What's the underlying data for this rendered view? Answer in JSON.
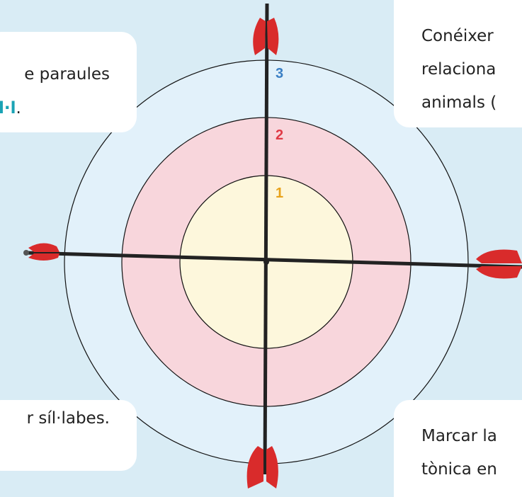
{
  "boxes": [
    {
      "lines": [
        "e paraules"
      ],
      "highlight": "l·l",
      "after": "."
    },
    {
      "lines": [
        "Conéixer",
        "relaciona",
        "animals ("
      ]
    },
    {
      "lines": [
        "r síl·labes."
      ]
    },
    {
      "lines": [
        "Marcar la",
        "tònica en"
      ]
    }
  ],
  "rings": [
    "3",
    "2",
    "1"
  ]
}
